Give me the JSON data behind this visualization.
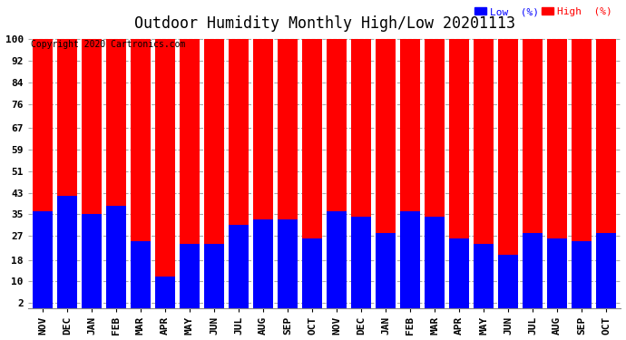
{
  "title": "Outdoor Humidity Monthly High/Low 20201113",
  "copyright": "Copyright 2020 Cartronics.com",
  "months": [
    "NOV",
    "DEC",
    "JAN",
    "FEB",
    "MAR",
    "APR",
    "MAY",
    "JUN",
    "JUL",
    "AUG",
    "SEP",
    "OCT",
    "NOV",
    "DEC",
    "JAN",
    "FEB",
    "MAR",
    "APR",
    "MAY",
    "JUN",
    "JUL",
    "AUG",
    "SEP",
    "OCT"
  ],
  "high_values": [
    100,
    100,
    100,
    100,
    100,
    100,
    100,
    100,
    100,
    100,
    100,
    100,
    100,
    100,
    100,
    100,
    100,
    100,
    100,
    100,
    100,
    100,
    100,
    100
  ],
  "low_values": [
    36,
    42,
    35,
    38,
    25,
    12,
    24,
    24,
    31,
    33,
    33,
    26,
    36,
    34,
    28,
    36,
    34,
    26,
    24,
    20,
    28,
    26,
    25,
    28
  ],
  "high_color": "#ff0000",
  "low_color": "#0000ff",
  "bg_color": "#ffffff",
  "yticks": [
    2,
    10,
    18,
    27,
    35,
    43,
    51,
    59,
    67,
    76,
    84,
    92,
    100
  ],
  "ylim": [
    0,
    102
  ],
  "bar_width": 0.8,
  "legend_low_label": "Low  (%)",
  "legend_high_label": "High  (%)",
  "grid_color": "#aaaaaa",
  "title_fontsize": 12,
  "label_fontsize": 8,
  "tick_fontsize": 8,
  "copyright_fontsize": 7
}
